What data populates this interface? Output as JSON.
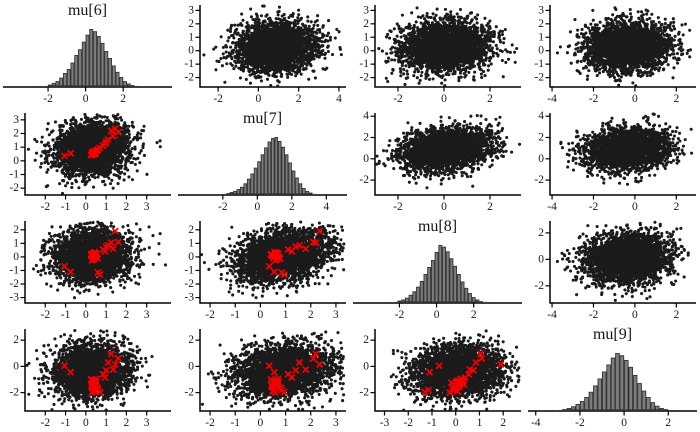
{
  "figure": {
    "kind": "mcmc-pairs-plot",
    "background": "#ffffff"
  },
  "style": {
    "point_color": "#1b1b1b",
    "divergence_color": "#f40000",
    "bar_fill": "#7d7d7d",
    "bar_stroke": "#2e2e2e",
    "axis_color": "#000000",
    "tick_label_color": "#1a1a1a",
    "title_color": "#141414"
  },
  "chart_data": {
    "type": "scatter",
    "subtype": "pairs-matrix",
    "variables": [
      "mu[6]",
      "mu[7]",
      "mu[8]",
      "mu[9]"
    ],
    "divergent_draws_columns": [
      "mu[6]",
      "mu[7]",
      "mu[8]",
      "mu[9]"
    ],
    "divergent_draws": [
      [
        0.35,
        0.55,
        0.1,
        -1.1
      ],
      [
        0.42,
        0.62,
        0.18,
        -1.35
      ],
      [
        0.3,
        0.48,
        0.05,
        -1.6
      ],
      [
        0.5,
        0.7,
        0.22,
        -0.95
      ],
      [
        0.38,
        0.52,
        -0.1,
        -1.85
      ],
      [
        0.45,
        0.66,
        0.3,
        -1.2
      ],
      [
        0.28,
        0.44,
        0.12,
        -1.45
      ],
      [
        0.55,
        0.75,
        -0.05,
        -1.7
      ],
      [
        0.33,
        0.58,
        0.25,
        -1.05
      ],
      [
        0.47,
        0.5,
        0.08,
        -1.9
      ],
      [
        0.4,
        0.68,
        -0.18,
        -1.25
      ],
      [
        0.36,
        0.46,
        0.15,
        -1.55
      ],
      [
        0.52,
        0.72,
        0.02,
        -1.15
      ],
      [
        0.31,
        0.6,
        -0.25,
        -2.0
      ],
      [
        0.44,
        0.56,
        0.35,
        -1.4
      ],
      [
        0.26,
        0.42,
        0.2,
        -1.0
      ],
      [
        0.58,
        0.78,
        -0.12,
        -1.65
      ],
      [
        0.41,
        0.64,
        0.28,
        -1.3
      ],
      [
        1.0,
        1.4,
        0.75,
        -0.3
      ],
      [
        1.25,
        2.2,
        1.05,
        0.95
      ],
      [
        1.45,
        2.35,
        1.9,
        0.15
      ],
      [
        -1.05,
        0.35,
        -0.7,
        0.05
      ],
      [
        -0.75,
        0.55,
        -1.1,
        -0.45
      ],
      [
        0.85,
        1.1,
        0.55,
        -0.6
      ],
      [
        1.1,
        1.55,
        0.85,
        0.3
      ],
      [
        1.35,
        1.8,
        0.6,
        -0.25
      ],
      [
        0.7,
        0.95,
        -1.3,
        -1.95
      ],
      [
        0.6,
        0.85,
        -1.15,
        -1.8
      ],
      [
        0.95,
        1.25,
        0.4,
        -0.85
      ],
      [
        1.6,
        2.1,
        1.1,
        0.6
      ]
    ],
    "panels": [
      {
        "kind": "histogram",
        "title": "mu[6]",
        "x_var": "mu[6]",
        "x_ticks": [
          -2,
          0,
          2
        ],
        "x_range": [
          -4.4,
          4.6
        ],
        "bins": {
          "start": -2.6,
          "width": 0.2,
          "heights": [
            0.01,
            0.01,
            0.02,
            0.04,
            0.07,
            0.1,
            0.16,
            0.24,
            0.31,
            0.42,
            0.55,
            0.65,
            0.78,
            0.9,
            1.0,
            0.96,
            0.88,
            0.76,
            0.62,
            0.5,
            0.37,
            0.26,
            0.17,
            0.1,
            0.06,
            0.03,
            0.02,
            0.01
          ]
        }
      },
      {
        "kind": "scatter",
        "x_var": "mu[7]",
        "y_var": "mu[6]",
        "x_ticks": [
          -2,
          0,
          2,
          4
        ],
        "y_ticks": [
          3,
          2,
          1,
          0,
          -1,
          -2
        ],
        "x_range": [
          -2.9,
          4.35
        ],
        "y_range": [
          -2.7,
          3.4
        ],
        "x_dist": {
          "mean": 0.9,
          "sd": 0.95
        },
        "y_dist": {
          "mean": 0.3,
          "sd": 0.92
        },
        "rho": 0.1,
        "n": 3000,
        "seed": 2
      },
      {
        "kind": "scatter",
        "x_var": "mu[8]",
        "y_var": "mu[6]",
        "x_ticks": [
          -2,
          0,
          2
        ],
        "y_ticks": [
          3,
          2,
          1,
          0,
          -1,
          -2
        ],
        "x_range": [
          -3.0,
          3.35
        ],
        "y_range": [
          -2.7,
          3.4
        ],
        "x_dist": {
          "mean": 0.1,
          "sd": 0.95
        },
        "y_dist": {
          "mean": 0.3,
          "sd": 0.92
        },
        "rho": 0.05,
        "n": 3000,
        "seed": 3
      },
      {
        "kind": "scatter",
        "x_var": "mu[9]",
        "y_var": "mu[6]",
        "x_ticks": [
          -4,
          -2,
          0,
          2
        ],
        "y_ticks": [
          3,
          2,
          1,
          0,
          -1,
          -2
        ],
        "x_range": [
          -4.1,
          2.95
        ],
        "y_range": [
          -2.7,
          3.4
        ],
        "x_dist": {
          "mean": -0.35,
          "sd": 1.0
        },
        "y_dist": {
          "mean": 0.3,
          "sd": 0.92
        },
        "rho": 0.05,
        "n": 3000,
        "seed": 4
      },
      {
        "kind": "scatter",
        "x_var": "mu[6]",
        "y_var": "mu[7]",
        "x_ticks": [
          -2,
          -1,
          0,
          1,
          2,
          3
        ],
        "y_ticks": [
          3,
          2,
          1,
          0,
          -1,
          -2
        ],
        "x_range": [
          -3.0,
          4.2
        ],
        "y_range": [
          -2.5,
          3.5
        ],
        "x_dist": {
          "mean": 0.3,
          "sd": 0.92
        },
        "y_dist": {
          "mean": 0.9,
          "sd": 0.95
        },
        "rho": 0.1,
        "n": 3000,
        "seed": 5,
        "divergent": true,
        "dx": 0,
        "dy": 1
      },
      {
        "kind": "histogram",
        "title": "mu[7]",
        "x_var": "mu[7]",
        "x_ticks": [
          -2,
          0,
          2,
          4
        ],
        "x_range": [
          -4.6,
          5.2
        ],
        "bins": {
          "start": -2.4,
          "width": 0.2,
          "heights": [
            0.01,
            0.01,
            0.02,
            0.03,
            0.05,
            0.07,
            0.1,
            0.14,
            0.2,
            0.28,
            0.37,
            0.47,
            0.58,
            0.7,
            0.82,
            0.92,
            0.98,
            1.0,
            0.93,
            0.83,
            0.7,
            0.56,
            0.42,
            0.3,
            0.2,
            0.12,
            0.07,
            0.04,
            0.02,
            0.01
          ]
        }
      },
      {
        "kind": "scatter",
        "x_var": "mu[8]",
        "y_var": "mu[7]",
        "x_ticks": [
          -2,
          0,
          2
        ],
        "y_ticks": [
          4,
          2,
          0,
          -2
        ],
        "x_range": [
          -3.0,
          3.35
        ],
        "y_range": [
          -3.4,
          4.3
        ],
        "x_dist": {
          "mean": 0.1,
          "sd": 0.95
        },
        "y_dist": {
          "mean": 0.9,
          "sd": 0.95
        },
        "rho": 0.25,
        "n": 3000,
        "seed": 7
      },
      {
        "kind": "scatter",
        "x_var": "mu[9]",
        "y_var": "mu[7]",
        "x_ticks": [
          -4,
          -2,
          0,
          2
        ],
        "y_ticks": [
          4,
          2,
          0,
          -2
        ],
        "x_range": [
          -4.1,
          2.95
        ],
        "y_range": [
          -3.4,
          4.3
        ],
        "x_dist": {
          "mean": -0.35,
          "sd": 1.0
        },
        "y_dist": {
          "mean": 0.9,
          "sd": 0.95
        },
        "rho": 0.15,
        "n": 3000,
        "seed": 8
      },
      {
        "kind": "scatter",
        "x_var": "mu[6]",
        "y_var": "mu[8]",
        "x_ticks": [
          -2,
          -1,
          0,
          1,
          2,
          3
        ],
        "y_ticks": [
          2,
          1,
          0,
          -1,
          -2,
          -3
        ],
        "x_range": [
          -3.0,
          4.2
        ],
        "y_range": [
          -3.4,
          2.65
        ],
        "x_dist": {
          "mean": 0.3,
          "sd": 0.92
        },
        "y_dist": {
          "mean": 0.1,
          "sd": 0.95
        },
        "rho": 0.05,
        "n": 3000,
        "seed": 9,
        "divergent": true,
        "dx": 0,
        "dy": 2
      },
      {
        "kind": "scatter",
        "x_var": "mu[7]",
        "y_var": "mu[8]",
        "x_ticks": [
          -2,
          -1,
          0,
          1,
          2,
          3
        ],
        "y_ticks": [
          2,
          1,
          0,
          -1,
          -2,
          -3
        ],
        "x_range": [
          -2.4,
          3.4
        ],
        "y_range": [
          -3.4,
          2.65
        ],
        "x_dist": {
          "mean": 0.9,
          "sd": 0.95
        },
        "y_dist": {
          "mean": 0.1,
          "sd": 0.95
        },
        "rho": 0.3,
        "n": 3000,
        "seed": 10,
        "divergent": true,
        "dx": 1,
        "dy": 2
      },
      {
        "kind": "histogram",
        "title": "mu[8]",
        "x_var": "mu[8]",
        "x_ticks": [
          -2,
          0,
          2
        ],
        "x_range": [
          -4.5,
          4.6
        ],
        "bins": {
          "start": -2.7,
          "width": 0.2,
          "heights": [
            0.01,
            0.01,
            0.02,
            0.04,
            0.06,
            0.09,
            0.14,
            0.2,
            0.28,
            0.38,
            0.5,
            0.62,
            0.74,
            0.88,
            1.0,
            0.97,
            0.89,
            0.77,
            0.64,
            0.5,
            0.37,
            0.26,
            0.17,
            0.1,
            0.06,
            0.03,
            0.02,
            0.01
          ]
        }
      },
      {
        "kind": "scatter",
        "x_var": "mu[9]",
        "y_var": "mu[8]",
        "x_ticks": [
          -4,
          -2,
          0,
          2
        ],
        "y_ticks": [
          2,
          0,
          -2
        ],
        "x_range": [
          -4.1,
          2.95
        ],
        "y_range": [
          -3.3,
          2.9
        ],
        "x_dist": {
          "mean": -0.35,
          "sd": 1.0
        },
        "y_dist": {
          "mean": 0.1,
          "sd": 0.95
        },
        "rho": 0.1,
        "n": 3000,
        "seed": 12
      },
      {
        "kind": "scatter",
        "x_var": "mu[6]",
        "y_var": "mu[9]",
        "x_ticks": [
          -2,
          -1,
          0,
          1,
          2,
          3
        ],
        "y_ticks": [
          2,
          0,
          -2
        ],
        "x_range": [
          -3.0,
          4.2
        ],
        "y_range": [
          -3.4,
          2.85
        ],
        "x_dist": {
          "mean": 0.3,
          "sd": 0.92
        },
        "y_dist": {
          "mean": -0.35,
          "sd": 1.0
        },
        "rho": 0.05,
        "n": 3000,
        "seed": 13,
        "divergent": true,
        "dx": 0,
        "dy": 3
      },
      {
        "kind": "scatter",
        "x_var": "mu[7]",
        "y_var": "mu[9]",
        "x_ticks": [
          -2,
          -1,
          0,
          1,
          2,
          3
        ],
        "y_ticks": [
          2,
          0,
          -2
        ],
        "x_range": [
          -2.4,
          3.4
        ],
        "y_range": [
          -3.4,
          2.85
        ],
        "x_dist": {
          "mean": 0.9,
          "sd": 0.95
        },
        "y_dist": {
          "mean": -0.35,
          "sd": 1.0
        },
        "rho": 0.15,
        "n": 3000,
        "seed": 14,
        "divergent": true,
        "dx": 1,
        "dy": 3
      },
      {
        "kind": "scatter",
        "x_var": "mu[8]",
        "y_var": "mu[9]",
        "x_ticks": [
          -3,
          -2,
          -1,
          0,
          1,
          2
        ],
        "y_ticks": [
          2,
          0,
          -2
        ],
        "x_range": [
          -3.4,
          2.75
        ],
        "y_range": [
          -3.4,
          2.85
        ],
        "x_dist": {
          "mean": 0.1,
          "sd": 0.95
        },
        "y_dist": {
          "mean": -0.35,
          "sd": 1.0
        },
        "rho": 0.1,
        "n": 3000,
        "seed": 15,
        "divergent": true,
        "dx": 2,
        "dy": 3
      },
      {
        "kind": "histogram",
        "title": "mu[9]",
        "x_var": "mu[9]",
        "x_ticks": [
          -4,
          -2,
          0,
          2
        ],
        "x_range": [
          -4.35,
          3.3
        ],
        "bins": {
          "start": -3.4,
          "width": 0.2,
          "heights": [
            0.01,
            0.01,
            0.02,
            0.03,
            0.05,
            0.08,
            0.12,
            0.17,
            0.24,
            0.33,
            0.44,
            0.56,
            0.68,
            0.8,
            0.92,
            1.0,
            0.96,
            0.88,
            0.76,
            0.62,
            0.48,
            0.35,
            0.24,
            0.15,
            0.09,
            0.05,
            0.03,
            0.01,
            0.01
          ]
        }
      }
    ]
  }
}
